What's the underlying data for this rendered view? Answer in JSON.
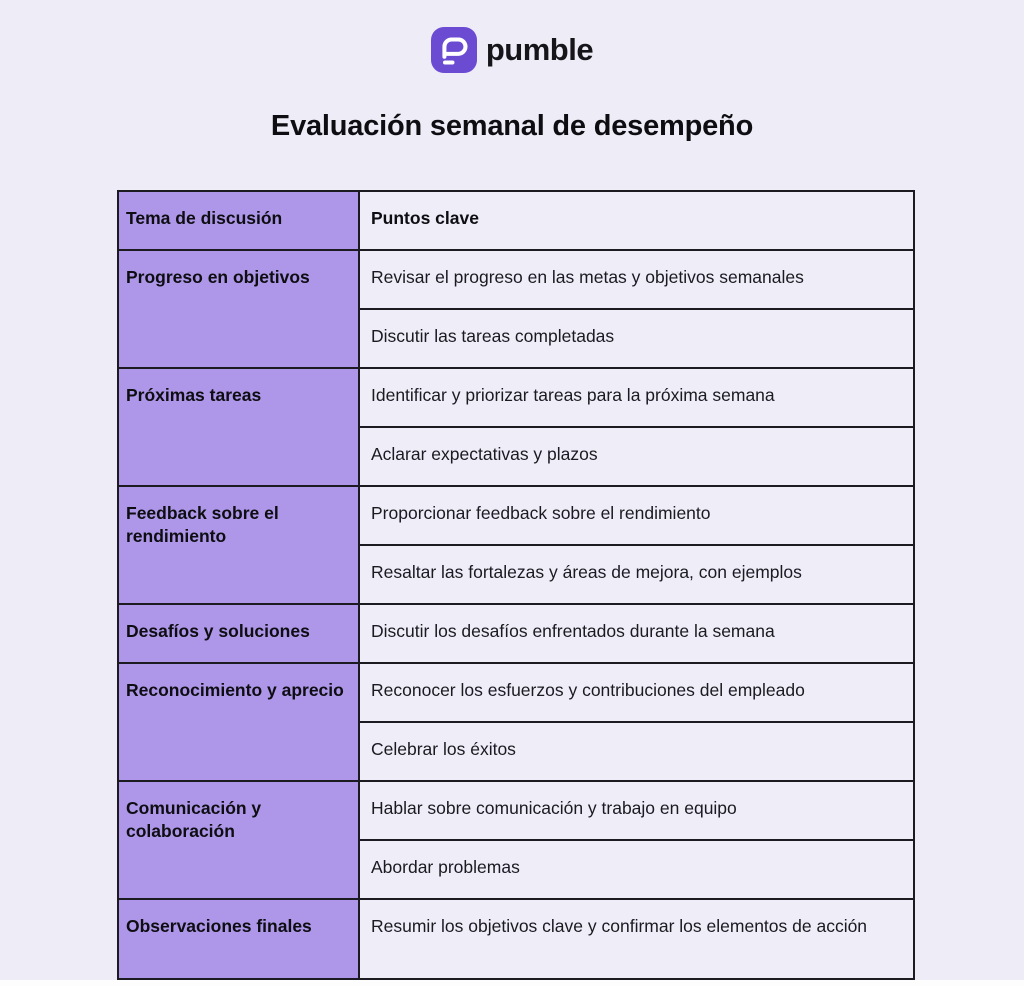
{
  "colors": {
    "page_background": "#EEECF6",
    "cell_light": "#EFEDF8",
    "cell_purple": "#AE97E9",
    "border": "#1C1B22",
    "brand_purple": "#6C4BD3",
    "text_dark": "#1B1A20"
  },
  "logo": {
    "brand": "pumble",
    "icon": "pumble-chat-bubble-icon"
  },
  "page": {
    "title": "Evaluación semanal de desempeño"
  },
  "table": {
    "headers": {
      "topic": "Tema de discusión",
      "points": "Puntos clave"
    },
    "rows": [
      {
        "topic": "Progreso en objetivos",
        "points": [
          "Revisar el progreso en las metas y objetivos semanales",
          "Discutir las tareas completadas"
        ]
      },
      {
        "topic": "Próximas tareas",
        "points": [
          "Identificar y priorizar tareas para la próxima semana",
          "Aclarar expectativas y plazos"
        ]
      },
      {
        "topic": "Feedback sobre el rendimiento",
        "points": [
          "Proporcionar feedback sobre el rendimiento",
          "Resaltar las fortalezas y áreas de mejora, con ejemplos"
        ]
      },
      {
        "topic": "Desafíos y soluciones",
        "points": [
          "Discutir los desafíos enfrentados durante la semana"
        ]
      },
      {
        "topic": "Reconocimiento y aprecio",
        "points": [
          "Reconocer los esfuerzos y contribuciones del empleado",
          "Celebrar los éxitos"
        ]
      },
      {
        "topic": "Comunicación y colaboración",
        "points": [
          "Hablar sobre comunicación y trabajo en equipo",
          "Abordar problemas"
        ]
      },
      {
        "topic": "Observaciones finales",
        "points": [
          "Resumir los objetivos clave y confirmar los elementos de acción"
        ]
      }
    ]
  }
}
